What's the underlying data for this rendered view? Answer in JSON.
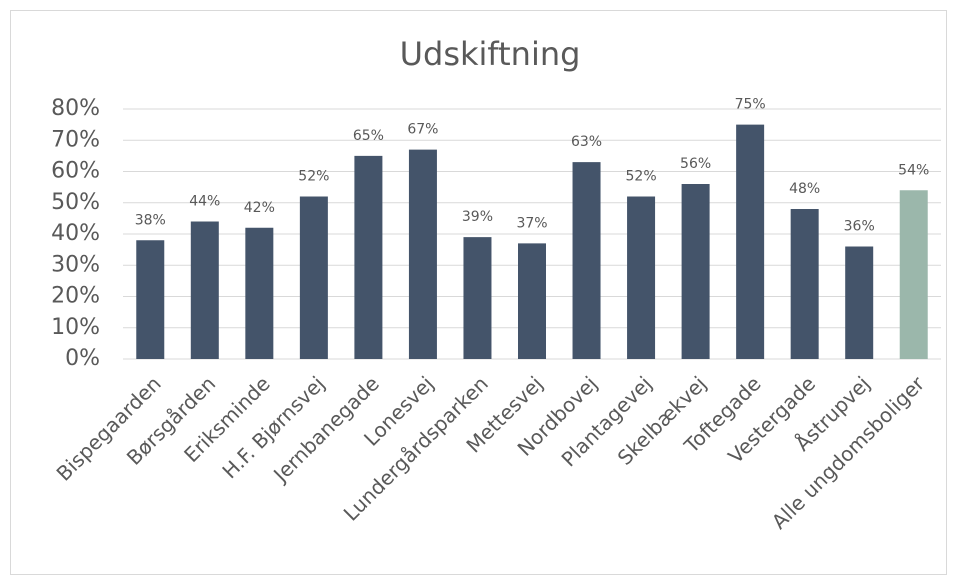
{
  "chart_data": {
    "type": "bar",
    "title": "Udskiftning",
    "categories": [
      "Bispegaarden",
      "Børsgården",
      "Eriksminde",
      "H.F. Bjørnsvej",
      "Jernbanegade",
      "Lonesvej",
      "Lundergårdsparken",
      "Mettesvej",
      "Nordbovej",
      "Plantagevej",
      "Skelbækvej",
      "Toftegade",
      "Vestergade",
      "Åstrupvej",
      "Alle ungdomsboliger"
    ],
    "values": [
      38,
      44,
      42,
      52,
      65,
      67,
      39,
      37,
      63,
      52,
      56,
      75,
      48,
      36,
      54
    ],
    "value_labels": [
      "38%",
      "44%",
      "42%",
      "52%",
      "65%",
      "67%",
      "39%",
      "37%",
      "63%",
      "52%",
      "56%",
      "75%",
      "48%",
      "36%",
      "54%"
    ],
    "colors": [
      "#44546a",
      "#44546a",
      "#44546a",
      "#44546a",
      "#44546a",
      "#44546a",
      "#44546a",
      "#44546a",
      "#44546a",
      "#44546a",
      "#44546a",
      "#44546a",
      "#44546a",
      "#44546a",
      "#9bb7ab"
    ],
    "ylim": [
      0,
      80
    ],
    "yticks": [
      {
        "value": 0,
        "label": "0%"
      },
      {
        "value": 10,
        "label": "10%"
      },
      {
        "value": 20,
        "label": "20%"
      },
      {
        "value": 30,
        "label": "30%"
      },
      {
        "value": 40,
        "label": "40%"
      },
      {
        "value": 50,
        "label": "50%"
      },
      {
        "value": 60,
        "label": "60%"
      },
      {
        "value": 70,
        "label": "70%"
      },
      {
        "value": 80,
        "label": "80%"
      }
    ],
    "grid": true
  }
}
